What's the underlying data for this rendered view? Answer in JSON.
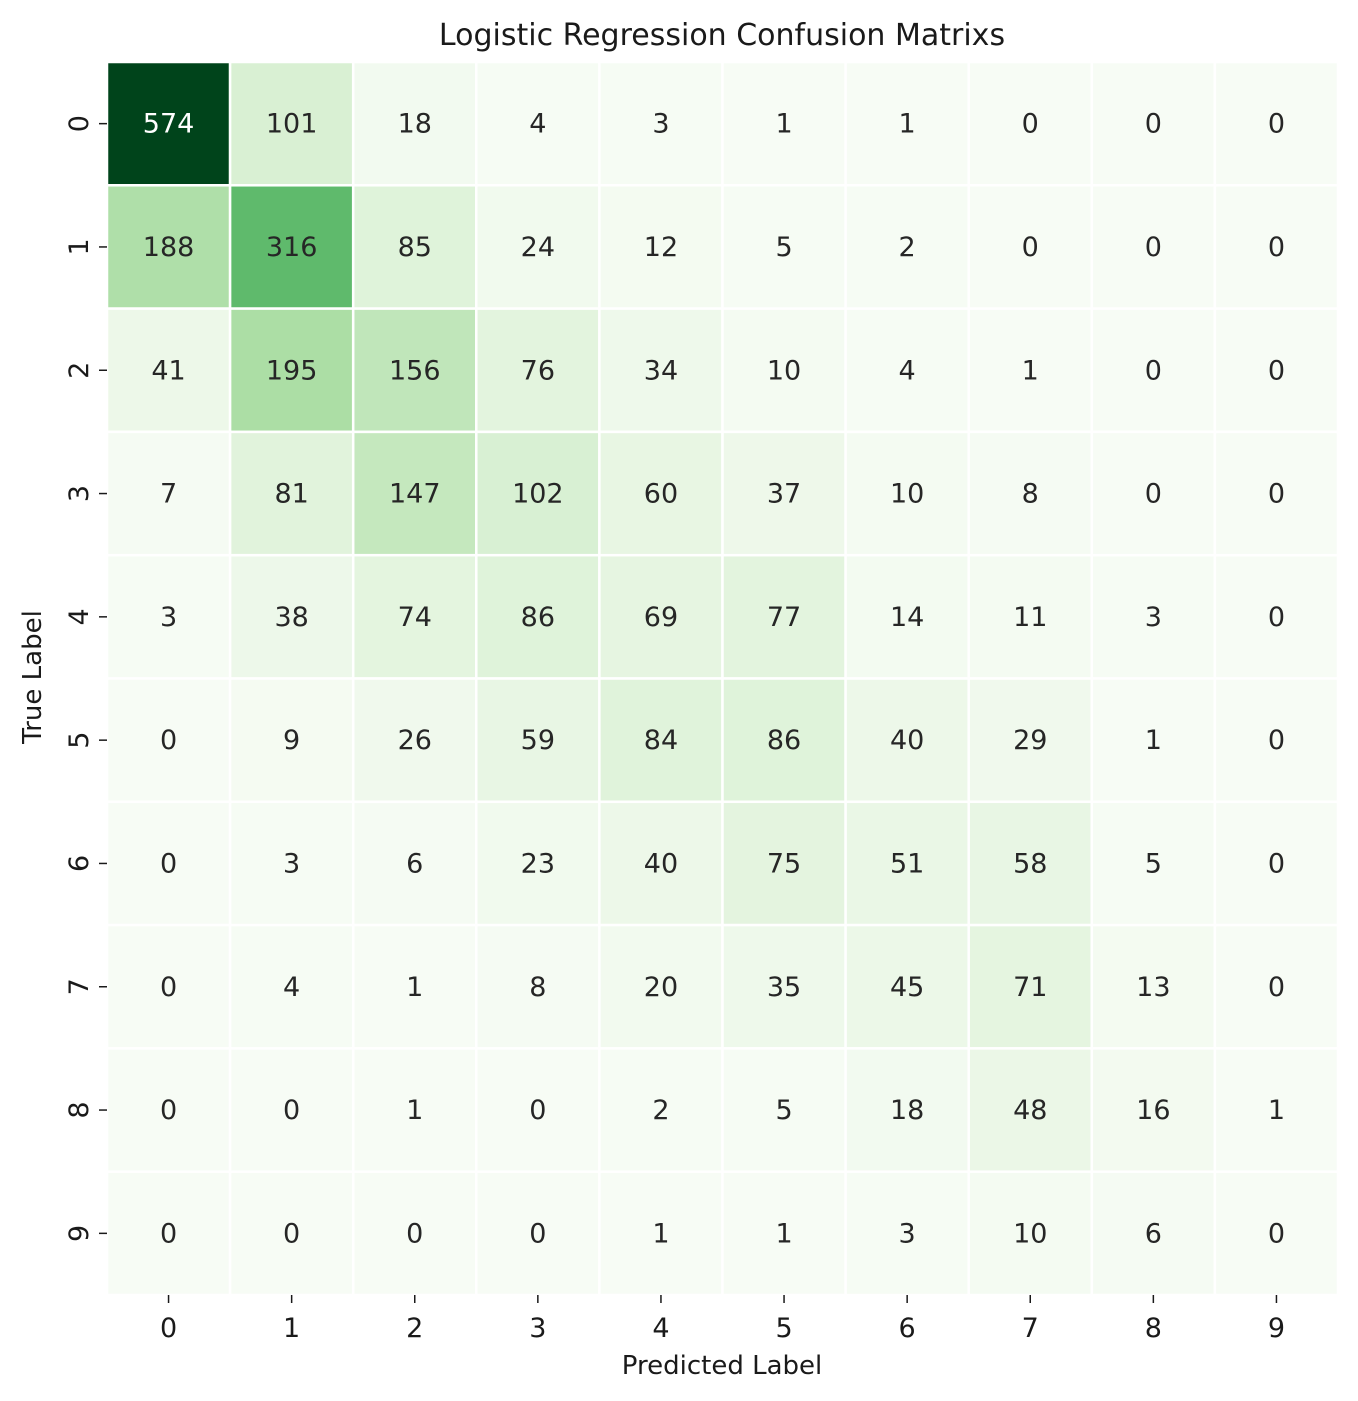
{
  "chart_data": {
    "type": "heatmap",
    "title": "Logistic Regression Confusion Matrixs",
    "xlabel": "Predicted Label",
    "ylabel": "True Label",
    "x_categories": [
      "0",
      "1",
      "2",
      "3",
      "4",
      "5",
      "6",
      "7",
      "8",
      "9"
    ],
    "y_categories": [
      "0",
      "1",
      "2",
      "3",
      "4",
      "5",
      "6",
      "7",
      "8",
      "9"
    ],
    "colormap": "Greens",
    "colorbar": false,
    "annotations": true,
    "values": [
      [
        574,
        101,
        18,
        4,
        3,
        1,
        1,
        0,
        0,
        0
      ],
      [
        188,
        316,
        85,
        24,
        12,
        5,
        2,
        0,
        0,
        0
      ],
      [
        41,
        195,
        156,
        76,
        34,
        10,
        4,
        1,
        0,
        0
      ],
      [
        7,
        81,
        147,
        102,
        60,
        37,
        10,
        8,
        0,
        0
      ],
      [
        3,
        38,
        74,
        86,
        69,
        77,
        14,
        11,
        3,
        0
      ],
      [
        0,
        9,
        26,
        59,
        84,
        86,
        40,
        29,
        1,
        0
      ],
      [
        0,
        3,
        6,
        23,
        40,
        75,
        51,
        58,
        5,
        0
      ],
      [
        0,
        4,
        1,
        8,
        20,
        35,
        45,
        71,
        13,
        0
      ],
      [
        0,
        0,
        1,
        0,
        2,
        5,
        18,
        48,
        16,
        1
      ],
      [
        0,
        0,
        0,
        0,
        1,
        1,
        3,
        10,
        6,
        0
      ]
    ],
    "colors": {
      "light_text": "#ffffff",
      "dark_text": "#262626",
      "cell_border": "#ffffff"
    }
  }
}
